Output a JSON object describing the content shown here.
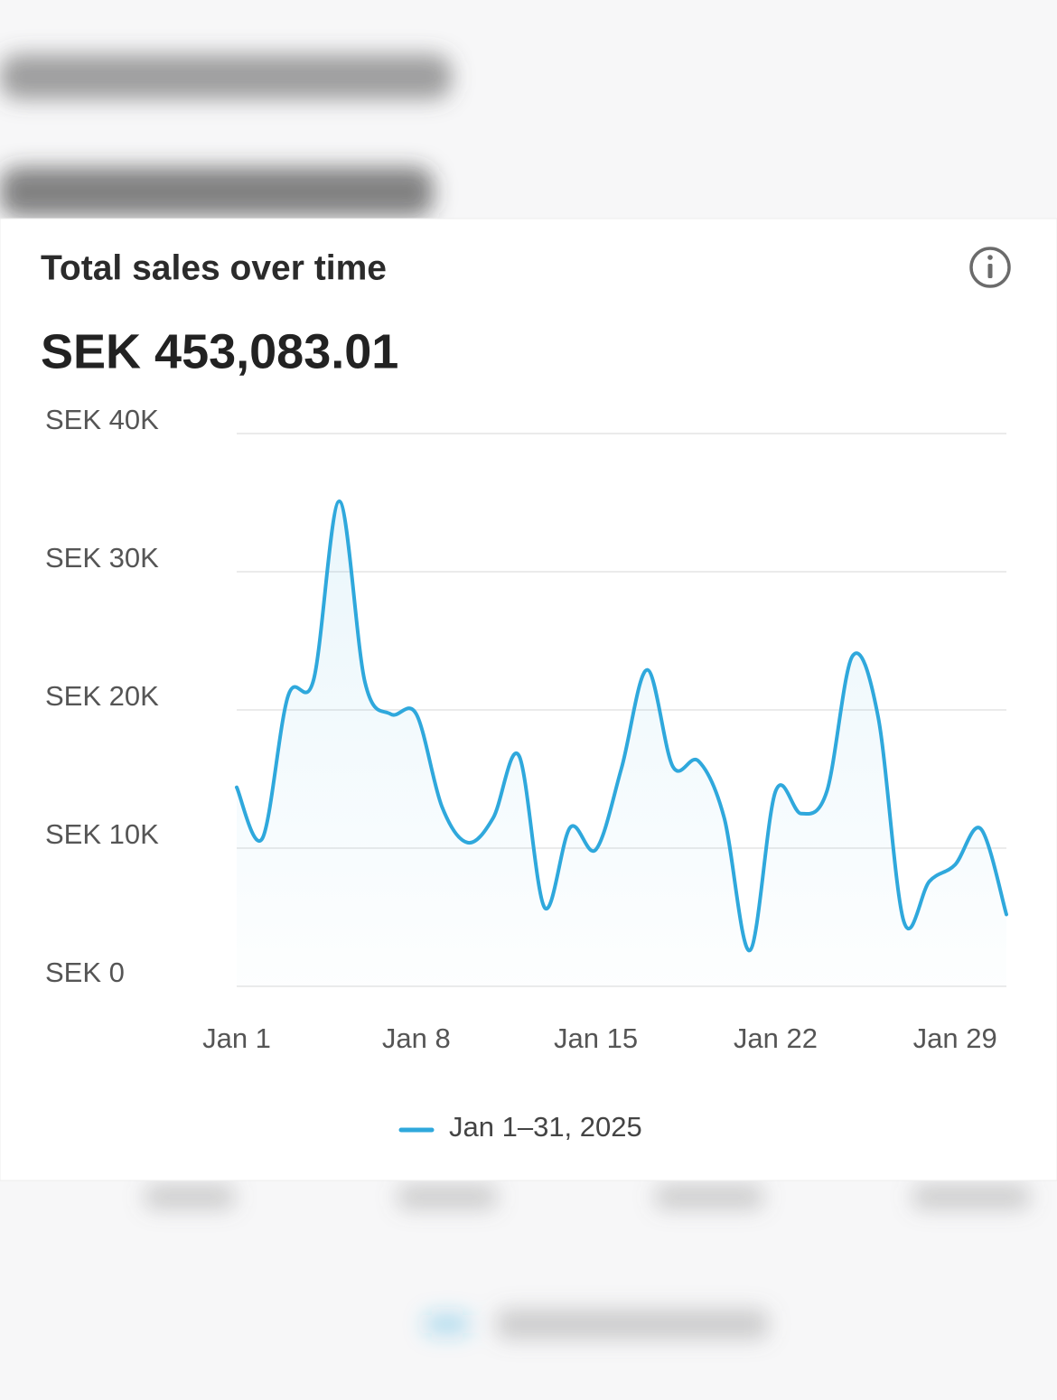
{
  "chart_data": {
    "type": "line",
    "title": "Total sales over time",
    "subtitle": "SEK 453,083.01",
    "categories": [
      "Jan 1",
      null,
      null,
      null,
      null,
      null,
      null,
      "Jan 8",
      null,
      null,
      null,
      null,
      null,
      null,
      "Jan 15",
      null,
      null,
      null,
      null,
      null,
      null,
      "Jan 22",
      null,
      null,
      null,
      null,
      null,
      null,
      "Jan 29",
      null,
      null
    ],
    "series": [
      {
        "name": "Jan 1–31, 2025",
        "color": "#2fa8dc",
        "values": [
          14400,
          10700,
          21000,
          22200,
          35100,
          22000,
          19700,
          19700,
          13000,
          10400,
          12200,
          16700,
          5700,
          11500,
          9900,
          15800,
          22900,
          15900,
          16300,
          12200,
          2600,
          14100,
          12500,
          14100,
          23900,
          19500,
          4700,
          7600,
          8800,
          11400,
          5200
        ]
      }
    ],
    "ylim": [
      0,
      40000
    ],
    "yticks": [
      {
        "value": 0,
        "label": "SEK 0"
      },
      {
        "value": 10000,
        "label": "SEK 10K"
      },
      {
        "value": 20000,
        "label": "SEK 20K"
      },
      {
        "value": 30000,
        "label": "SEK 30K"
      },
      {
        "value": 40000,
        "label": "SEK 40K"
      }
    ],
    "grid": true,
    "legend": "bottom"
  }
}
